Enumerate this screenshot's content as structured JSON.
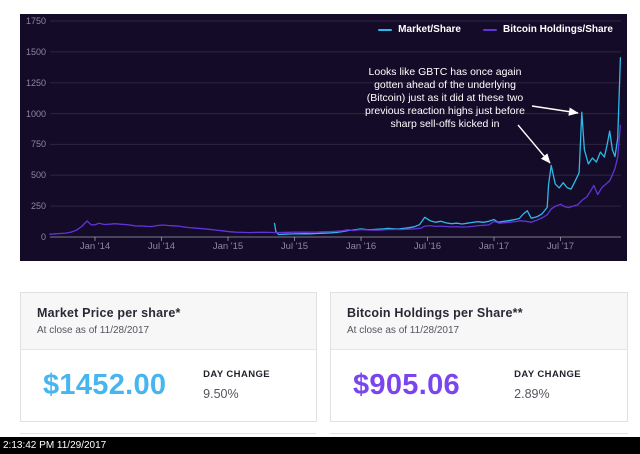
{
  "colors": {
    "chart_background": "#140b28",
    "market_line": "#2cb9e8",
    "holdings_line": "#6233d8",
    "market_value": "#45b6f0",
    "holdings_value": "#7a45ef",
    "grid_line": "rgba(255,255,255,0.11)",
    "axis_line": "rgba(255,255,255,0.45)",
    "tick_label": "#8d87a4"
  },
  "chart_data": {
    "type": "line",
    "title": "",
    "xlabel": "",
    "ylabel": "",
    "ylim": [
      0,
      1750
    ],
    "yticks": [
      0,
      250,
      500,
      750,
      1000,
      1250,
      1500,
      1750
    ],
    "xticks": [
      {
        "label": "Jan '14",
        "x": 2014.0
      },
      {
        "label": "Jul '14",
        "x": 2014.5
      },
      {
        "label": "Jan '15",
        "x": 2015.0
      },
      {
        "label": "Jul '15",
        "x": 2015.5
      },
      {
        "label": "Jan '16",
        "x": 2016.0
      },
      {
        "label": "Jul '16",
        "x": 2016.5
      },
      {
        "label": "Jan '17",
        "x": 2017.0
      },
      {
        "label": "Jul '17",
        "x": 2017.5
      }
    ],
    "grid": true,
    "legend_position": "top-right",
    "legend": [
      {
        "label": "Market/Share",
        "color": "#2cb9e8"
      },
      {
        "label": "Bitcoin Holdings/Share",
        "color": "#6233d8"
      }
    ],
    "series": [
      {
        "name": "Market/Share",
        "color": "#2cb9e8",
        "points": [
          [
            2015.35,
            110
          ],
          [
            2015.36,
            44
          ],
          [
            2015.38,
            20
          ],
          [
            2015.42,
            23
          ],
          [
            2015.46,
            24
          ],
          [
            2015.5,
            25
          ],
          [
            2015.54,
            26
          ],
          [
            2015.58,
            27
          ],
          [
            2015.62,
            26
          ],
          [
            2015.66,
            28
          ],
          [
            2015.7,
            30
          ],
          [
            2015.74,
            32
          ],
          [
            2015.78,
            34
          ],
          [
            2015.82,
            38
          ],
          [
            2015.86,
            44
          ],
          [
            2015.9,
            52
          ],
          [
            2015.94,
            57
          ],
          [
            2016.0,
            66
          ],
          [
            2016.04,
            61
          ],
          [
            2016.08,
            59
          ],
          [
            2016.12,
            62
          ],
          [
            2016.16,
            65
          ],
          [
            2016.2,
            70
          ],
          [
            2016.24,
            67
          ],
          [
            2016.28,
            65
          ],
          [
            2016.32,
            70
          ],
          [
            2016.36,
            75
          ],
          [
            2016.4,
            83
          ],
          [
            2016.44,
            100
          ],
          [
            2016.48,
            160
          ],
          [
            2016.52,
            131
          ],
          [
            2016.56,
            120
          ],
          [
            2016.6,
            127
          ],
          [
            2016.64,
            114
          ],
          [
            2016.68,
            108
          ],
          [
            2016.72,
            112
          ],
          [
            2016.76,
            105
          ],
          [
            2016.8,
            112
          ],
          [
            2016.84,
            118
          ],
          [
            2016.88,
            124
          ],
          [
            2016.92,
            119
          ],
          [
            2016.96,
            127
          ],
          [
            2017.0,
            142
          ],
          [
            2017.03,
            119
          ],
          [
            2017.07,
            126
          ],
          [
            2017.11,
            132
          ],
          [
            2017.15,
            140
          ],
          [
            2017.19,
            150
          ],
          [
            2017.22,
            186
          ],
          [
            2017.25,
            212
          ],
          [
            2017.28,
            152
          ],
          [
            2017.32,
            163
          ],
          [
            2017.36,
            186
          ],
          [
            2017.4,
            240
          ],
          [
            2017.41,
            420
          ],
          [
            2017.43,
            580
          ],
          [
            2017.46,
            430
          ],
          [
            2017.49,
            398
          ],
          [
            2017.52,
            440
          ],
          [
            2017.55,
            400
          ],
          [
            2017.58,
            388
          ],
          [
            2017.61,
            452
          ],
          [
            2017.64,
            520
          ],
          [
            2017.66,
            1010
          ],
          [
            2017.68,
            706
          ],
          [
            2017.71,
            592
          ],
          [
            2017.74,
            640
          ],
          [
            2017.77,
            608
          ],
          [
            2017.8,
            688
          ],
          [
            2017.83,
            648
          ],
          [
            2017.85,
            742
          ],
          [
            2017.87,
            858
          ],
          [
            2017.89,
            706
          ],
          [
            2017.91,
            652
          ],
          [
            2017.93,
            800
          ],
          [
            2017.95,
            1452
          ]
        ]
      },
      {
        "name": "Bitcoin Holdings/Share",
        "color": "#6233d8",
        "points": [
          [
            2013.66,
            22
          ],
          [
            2013.7,
            26
          ],
          [
            2013.74,
            28
          ],
          [
            2013.78,
            32
          ],
          [
            2013.82,
            40
          ],
          [
            2013.86,
            55
          ],
          [
            2013.9,
            85
          ],
          [
            2013.94,
            130
          ],
          [
            2013.97,
            100
          ],
          [
            2014.0,
            98
          ],
          [
            2014.03,
            112
          ],
          [
            2014.07,
            101
          ],
          [
            2014.11,
            104
          ],
          [
            2014.15,
            108
          ],
          [
            2014.19,
            104
          ],
          [
            2014.23,
            101
          ],
          [
            2014.27,
            96
          ],
          [
            2014.31,
            88
          ],
          [
            2014.35,
            90
          ],
          [
            2014.39,
            86
          ],
          [
            2014.43,
            85
          ],
          [
            2014.47,
            93
          ],
          [
            2014.51,
            97
          ],
          [
            2014.55,
            93
          ],
          [
            2014.59,
            91
          ],
          [
            2014.63,
            88
          ],
          [
            2014.67,
            81
          ],
          [
            2014.71,
            76
          ],
          [
            2014.76,
            71
          ],
          [
            2014.81,
            67
          ],
          [
            2014.86,
            62
          ],
          [
            2014.91,
            56
          ],
          [
            2014.96,
            50
          ],
          [
            2015.01,
            43
          ],
          [
            2015.06,
            39
          ],
          [
            2015.11,
            37
          ],
          [
            2015.16,
            36
          ],
          [
            2015.21,
            37
          ],
          [
            2015.26,
            38
          ],
          [
            2015.31,
            37
          ],
          [
            2015.36,
            36
          ],
          [
            2015.41,
            37
          ],
          [
            2015.46,
            38
          ],
          [
            2015.51,
            40
          ],
          [
            2015.56,
            39
          ],
          [
            2015.61,
            39
          ],
          [
            2015.66,
            40
          ],
          [
            2015.71,
            42
          ],
          [
            2015.76,
            44
          ],
          [
            2015.81,
            46
          ],
          [
            2015.86,
            50
          ],
          [
            2015.9,
            58
          ],
          [
            2015.94,
            53
          ],
          [
            2016.0,
            60
          ],
          [
            2016.05,
            57
          ],
          [
            2016.1,
            55
          ],
          [
            2016.15,
            57
          ],
          [
            2016.2,
            60
          ],
          [
            2016.25,
            62
          ],
          [
            2016.3,
            60
          ],
          [
            2016.35,
            63
          ],
          [
            2016.4,
            66
          ],
          [
            2016.45,
            71
          ],
          [
            2016.48,
            88
          ],
          [
            2016.52,
            92
          ],
          [
            2016.56,
            86
          ],
          [
            2016.6,
            88
          ],
          [
            2016.64,
            85
          ],
          [
            2016.68,
            82
          ],
          [
            2016.72,
            84
          ],
          [
            2016.76,
            80
          ],
          [
            2016.8,
            82
          ],
          [
            2016.84,
            86
          ],
          [
            2016.88,
            92
          ],
          [
            2016.92,
            95
          ],
          [
            2016.96,
            98
          ],
          [
            2017.0,
            126
          ],
          [
            2017.04,
            112
          ],
          [
            2017.08,
            116
          ],
          [
            2017.12,
            120
          ],
          [
            2017.16,
            125
          ],
          [
            2017.2,
            131
          ],
          [
            2017.24,
            127
          ],
          [
            2017.28,
            120
          ],
          [
            2017.32,
            135
          ],
          [
            2017.36,
            155
          ],
          [
            2017.4,
            180
          ],
          [
            2017.43,
            228
          ],
          [
            2017.46,
            248
          ],
          [
            2017.5,
            266
          ],
          [
            2017.53,
            246
          ],
          [
            2017.56,
            238
          ],
          [
            2017.6,
            252
          ],
          [
            2017.63,
            262
          ],
          [
            2017.66,
            296
          ],
          [
            2017.7,
            328
          ],
          [
            2017.73,
            380
          ],
          [
            2017.75,
            418
          ],
          [
            2017.78,
            344
          ],
          [
            2017.81,
            398
          ],
          [
            2017.84,
            428
          ],
          [
            2017.87,
            456
          ],
          [
            2017.89,
            504
          ],
          [
            2017.91,
            556
          ],
          [
            2017.93,
            646
          ],
          [
            2017.95,
            905
          ]
        ]
      }
    ],
    "annotation": {
      "text": "Looks like GBTC has once again\ngotten ahead of the underlying\n(Bitcoin) just as it did at these two\nprevious reaction highs just before\nsharp sell-offs kicked in",
      "arrows": [
        {
          "from": [
            512,
            92
          ],
          "to": [
            558,
            99
          ]
        },
        {
          "from": [
            498,
            111
          ],
          "to": [
            530,
            149
          ]
        }
      ]
    }
  },
  "cards": [
    {
      "title": "Market Price per share*",
      "subtitle": "At close as of 11/28/2017",
      "value": "$1452.00",
      "value_color": "#45b6f0",
      "change_label": "DAY CHANGE",
      "change": "9.50%"
    },
    {
      "title": "Bitcoin Holdings per Share**",
      "subtitle": "At close as of 11/28/2017",
      "value": "$905.06",
      "value_color": "#7a45ef",
      "change_label": "DAY CHANGE",
      "change": "2.89%"
    }
  ],
  "footer": {
    "timestamp": "2:13:42 PM 11/29/2017"
  }
}
